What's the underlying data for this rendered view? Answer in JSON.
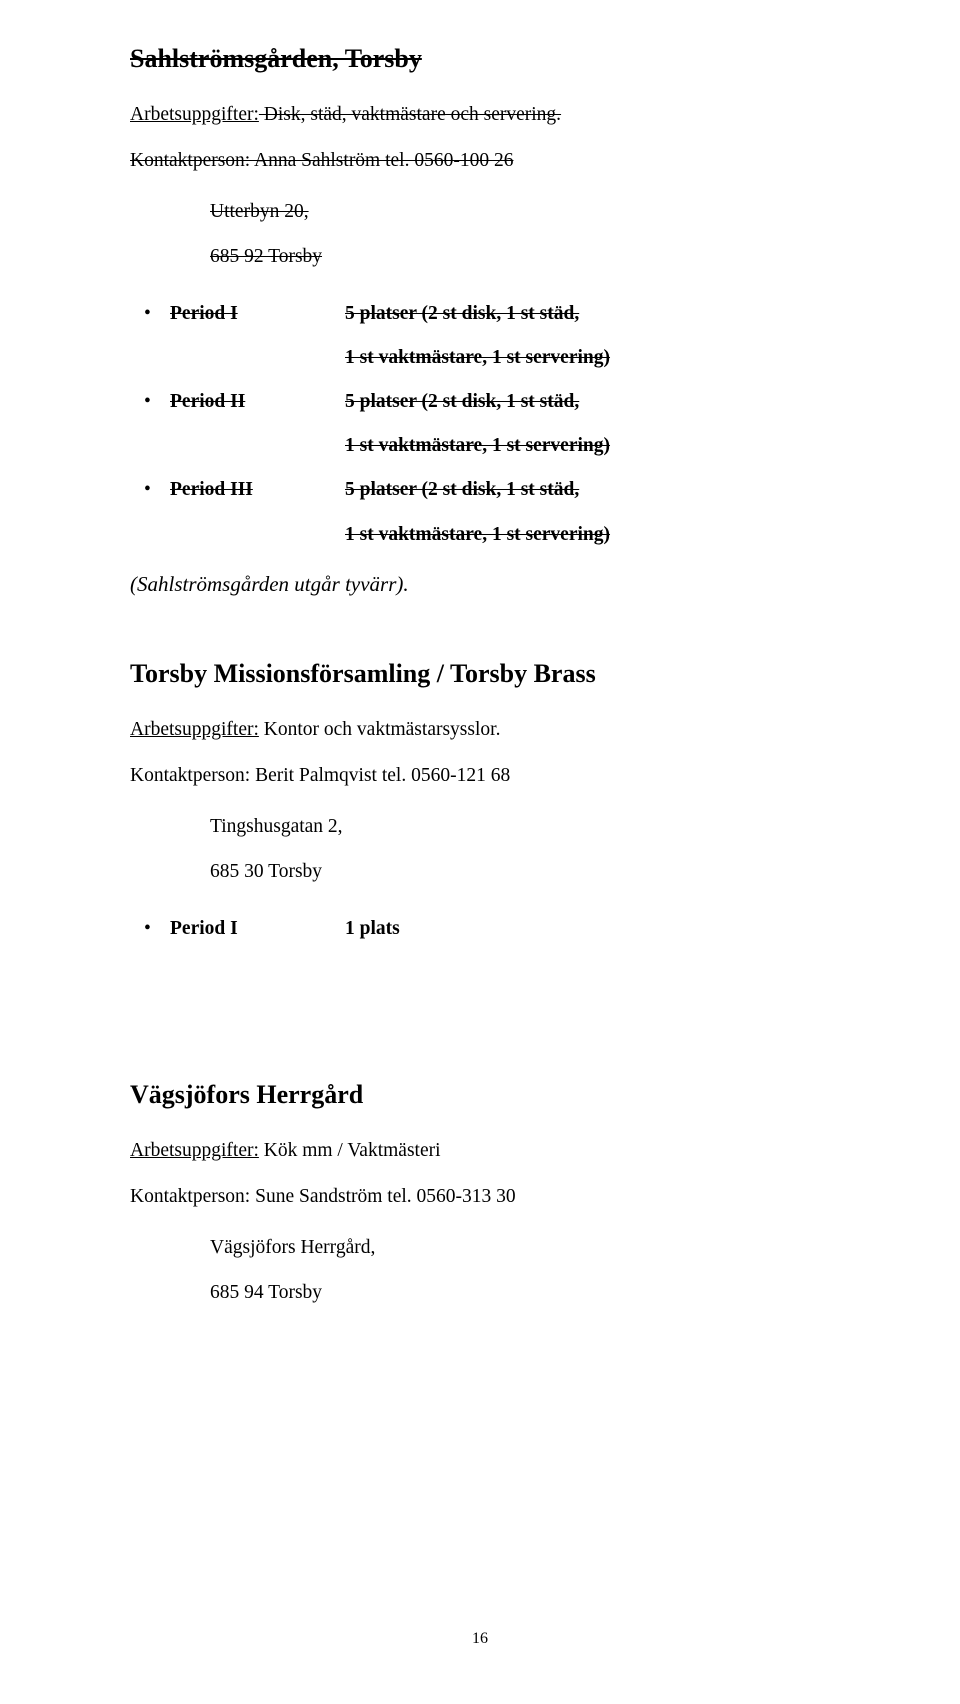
{
  "section1": {
    "title": "Sahlströmsgården, Torsby",
    "tasks_label": "Arbetsuppgifter:",
    "tasks_text": " Disk, städ, vaktmästare och servering.",
    "contact_line": "Kontaktperson: Anna Sahlström tel. 0560-100 26",
    "addr1": "Utterbyn 20,",
    "addr2": "685 92 Torsby",
    "periods": [
      {
        "label": "Period I",
        "value": "5 platser (2 st disk, 1 st städ,",
        "sub": "1 st vaktmästare, 1 st servering)"
      },
      {
        "label": "Period II",
        "value": "5 platser (2 st disk, 1 st städ,",
        "sub": "1 st vaktmästare, 1 st servering)"
      },
      {
        "label": "Period III",
        "value": "5 platser (2 st disk, 1 st städ,",
        "sub": "1 st vaktmästare, 1 st servering)"
      }
    ],
    "note": "(Sahlströmsgården utgår tyvärr)."
  },
  "section2": {
    "title": "Torsby Missionsförsamling / Torsby Brass",
    "tasks_label": "Arbetsuppgifter:",
    "tasks_text": " Kontor och vaktmästarsysslor.",
    "contact_line": "Kontaktperson: Berit Palmqvist tel. 0560-121 68",
    "addr1": "Tingshusgatan 2,",
    "addr2": "685 30 Torsby",
    "periods": [
      {
        "label": "Period I",
        "value": "1 plats"
      }
    ]
  },
  "section3": {
    "title": "Vägsjöfors Herrgård",
    "tasks_label": "Arbetsuppgifter:",
    "tasks_text": " Kök mm / Vaktmästeri",
    "contact_line": "Kontaktperson: Sune Sandström tel. 0560-313 30",
    "addr1": "Vägsjöfors Herrgård,",
    "addr2": "685 94 Torsby"
  },
  "page_number": "16"
}
